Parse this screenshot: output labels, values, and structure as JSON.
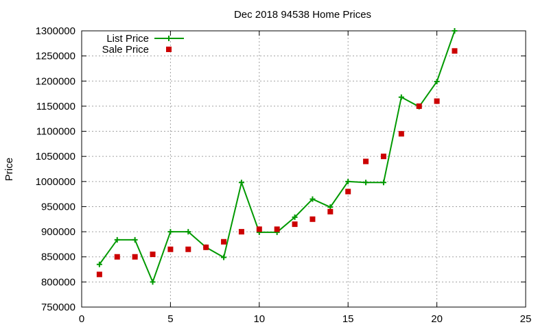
{
  "chart_data": {
    "type": "line",
    "title": "Dec 2018 94538 Home Prices",
    "xlabel": "",
    "ylabel": "Price",
    "xlim": [
      0,
      25
    ],
    "ylim": [
      750000,
      1300000
    ],
    "xticks": [
      0,
      5,
      10,
      15,
      20,
      25
    ],
    "yticks": [
      750000,
      800000,
      850000,
      900000,
      950000,
      1000000,
      1050000,
      1100000,
      1150000,
      1200000,
      1250000,
      1300000
    ],
    "grid": true,
    "legend_position": "top-left",
    "series": [
      {
        "name": "List Price",
        "kind": "line+cross",
        "color": "#009900",
        "x": [
          1,
          2,
          3,
          4,
          5,
          6,
          7,
          8,
          9,
          10,
          11,
          12,
          13,
          14,
          15,
          16,
          17,
          18,
          19,
          20,
          21
        ],
        "y": [
          835000,
          884000,
          884000,
          800000,
          900000,
          900000,
          869000,
          849000,
          998000,
          899000,
          899000,
          929000,
          965000,
          949000,
          1000000,
          998000,
          998000,
          1168000,
          1149000,
          1199000,
          1300000
        ]
      },
      {
        "name": "Sale Price",
        "kind": "square",
        "color": "#cc0000",
        "x": [
          1,
          2,
          3,
          4,
          5,
          6,
          7,
          8,
          9,
          10,
          11,
          12,
          13,
          14,
          15,
          16,
          17,
          18,
          19,
          20,
          21
        ],
        "y": [
          815000,
          850000,
          850000,
          855000,
          865000,
          865000,
          869000,
          880000,
          900000,
          905000,
          905000,
          915000,
          925000,
          940000,
          980000,
          1040000,
          1050000,
          1095000,
          1150000,
          1160000,
          1260000
        ]
      }
    ]
  }
}
